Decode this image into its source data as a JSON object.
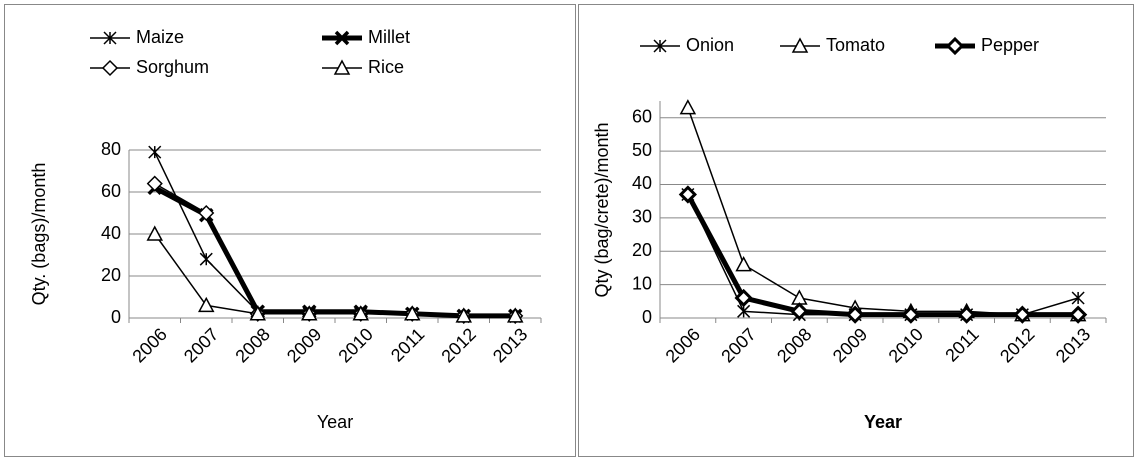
{
  "chart_data": [
    {
      "type": "line",
      "y_label": "Qty. (bags)/month",
      "x_label": "Year",
      "categories": [
        "2006",
        "2007",
        "2008",
        "2009",
        "2010",
        "2011",
        "2012",
        "2013"
      ],
      "ylim": [
        0,
        80
      ],
      "yticks": [
        0,
        20,
        40,
        60,
        80
      ],
      "grid": true,
      "series": [
        {
          "name": "Maize",
          "color": "#000000",
          "marker": "asterisk",
          "line_width": 1.5,
          "values": [
            79,
            28,
            3,
            2,
            2,
            2,
            1,
            1
          ]
        },
        {
          "name": "Millet",
          "color": "#000000",
          "marker": "x",
          "line_width": 5,
          "values": [
            62,
            49,
            3,
            3,
            3,
            2,
            1,
            1
          ]
        },
        {
          "name": "Sorghum",
          "color": "#000000",
          "marker": "diamond",
          "line_width": 1.5,
          "values": [
            64,
            50,
            2,
            2,
            2,
            2,
            1,
            1
          ]
        },
        {
          "name": "Rice",
          "color": "#000000",
          "marker": "triangle",
          "line_width": 1.5,
          "values": [
            40,
            6,
            2,
            2,
            2,
            2,
            1,
            1
          ]
        }
      ]
    },
    {
      "type": "line",
      "y_label": "Qty (bag/crete)/month",
      "x_label": "Year",
      "x_label_bold": true,
      "categories": [
        "2006",
        "2007",
        "2008",
        "2009",
        "2010",
        "2011",
        "2012",
        "2013"
      ],
      "ylim": [
        0,
        65
      ],
      "yticks": [
        0,
        10,
        20,
        30,
        40,
        50,
        60
      ],
      "grid": true,
      "series": [
        {
          "name": "Onion",
          "color": "#000000",
          "marker": "asterisk",
          "line_width": 1.5,
          "values": [
            37,
            2,
            1,
            1,
            1,
            1,
            1,
            6
          ]
        },
        {
          "name": "Tomato",
          "color": "#000000",
          "marker": "triangle",
          "line_width": 1.5,
          "values": [
            63,
            16,
            6,
            3,
            2,
            2,
            1,
            1
          ]
        },
        {
          "name": "Pepper",
          "color": "#000000",
          "marker": "diamond",
          "line_width": 5,
          "values": [
            37,
            6,
            2,
            1,
            1,
            1,
            1,
            1
          ]
        }
      ]
    }
  ]
}
